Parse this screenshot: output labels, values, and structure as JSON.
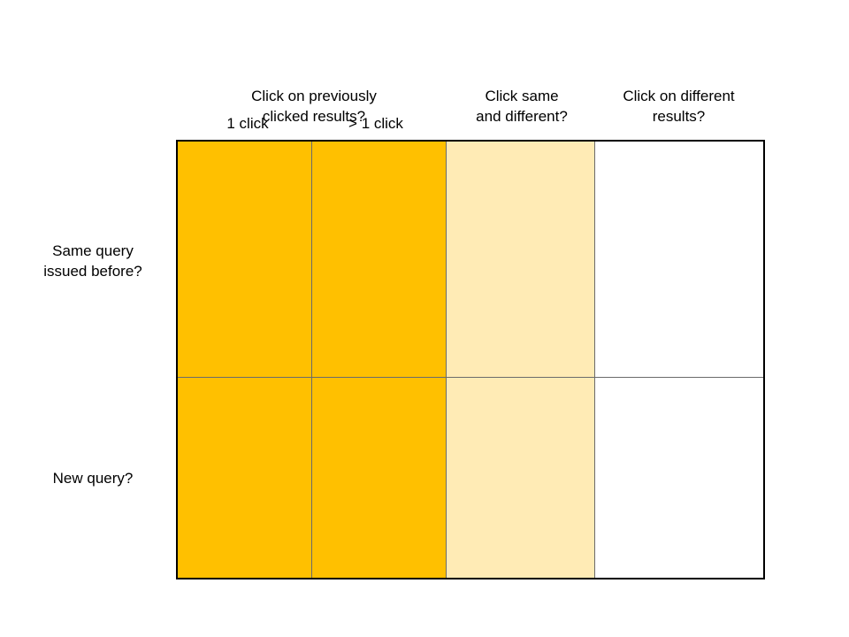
{
  "columns": {
    "previously_clicked": "Click on previously\nclicked results?",
    "same_and_different": "Click same\nand different?",
    "different": "Click on different\nresults?"
  },
  "subcolumns": {
    "one_click": "1 click",
    "more_than_one": "> 1 click"
  },
  "rows": {
    "same_query": "Same query\nissued before?",
    "new_query": "New query?"
  },
  "colors": {
    "strong": "#ffc000",
    "light": "#ffebb5",
    "none": "#ffffff",
    "border": "#000000"
  }
}
